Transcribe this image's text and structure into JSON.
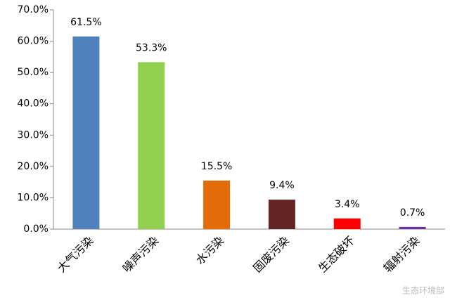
{
  "chart_data": {
    "type": "bar",
    "categories": [
      "大气污染",
      "噪声污染",
      "水污染",
      "固废污染",
      "生态破坏",
      "辐射污染"
    ],
    "values": [
      61.5,
      53.3,
      15.5,
      9.4,
      3.4,
      0.7
    ],
    "value_labels": [
      "61.5%",
      "53.3%",
      "15.5%",
      "9.4%",
      "3.4%",
      "0.7%"
    ],
    "colors": [
      "#4f81bd",
      "#92d050",
      "#e36c09",
      "#632523",
      "#ff0000",
      "#7030a0"
    ],
    "ylim": [
      0,
      70
    ],
    "yticks": [
      {
        "value": 0,
        "label": "0.0%"
      },
      {
        "value": 10,
        "label": "10.0%"
      },
      {
        "value": 20,
        "label": "20.0%"
      },
      {
        "value": 30,
        "label": "30.0%"
      },
      {
        "value": 40,
        "label": "40.0%"
      },
      {
        "value": 50,
        "label": "50.0%"
      },
      {
        "value": 60,
        "label": "60.0%"
      },
      {
        "value": 70,
        "label": "70.0%"
      }
    ],
    "grid": false,
    "watermark": "生态环境部"
  }
}
